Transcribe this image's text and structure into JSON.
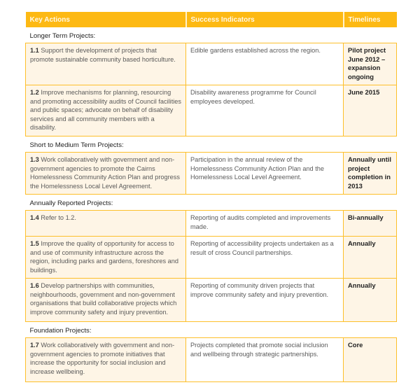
{
  "colors": {
    "header": "#fdb913",
    "cell_tint": "#fef5e6",
    "border": "#fdbf2a"
  },
  "headers": [
    "Key Actions",
    "Success Indicators",
    "Timelines"
  ],
  "sections": [
    {
      "title": "Longer Term Projects:",
      "rows": [
        {
          "num": "1.1",
          "action": "Support the development of projects that promote sustainable community based horticulture.",
          "indicator": "Edible gardens established across the region.",
          "timeline": "Pilot project June 2012 – expansion ongoing"
        },
        {
          "num": "1.2",
          "action": "Improve mechanisms for planning, resourcing and promoting accessibility audits of Council facilities and public spaces; advocate on behalf of disability services and all community members with a disability.",
          "indicator": "Disability awareness programme for Council employees developed.",
          "timeline": "June 2015"
        }
      ]
    },
    {
      "title": "Short to Medium Term Projects:",
      "rows": [
        {
          "num": "1.3",
          "action": "Work collaboratively with government and non-government agencies to promote the Cairns Homelessness Community Action Plan and progress the Homelessness Local Level Agreement.",
          "indicator": "Participation in the annual review of the Homelessness Community Action Plan and the Homelessness Local Level Agreement.",
          "timeline": "Annually until project completion in 2013"
        }
      ]
    },
    {
      "title": "Annually Reported Projects:",
      "rows": [
        {
          "num": "1.4",
          "action": "Refer to 1.2.",
          "indicator": "Reporting of audits completed and improvements made.",
          "timeline": "Bi-annually"
        },
        {
          "num": "1.5",
          "action": "Improve the quality of opportunity for access to and use of community infrastructure across the region, including parks and gardens, foreshores and buildings.",
          "indicator": "Reporting of accessibility projects undertaken as a result of cross Council partnerships.",
          "timeline": "Annually"
        },
        {
          "num": "1.6",
          "action": "Develop partnerships with communities, neighbourhoods, government and non-government organisations that build collaborative projects which improve community safety and injury prevention.",
          "indicator": "Reporting of community driven projects that improve community safety and injury prevention.",
          "timeline": "Annually"
        }
      ]
    },
    {
      "title": "Foundation Projects:",
      "rows": [
        {
          "num": "1.7",
          "action": "Work collaboratively with government and non-government agencies to promote initiatives that increase the opportunity for social inclusion and increase wellbeing.",
          "indicator": "Projects completed that promote social inclusion and wellbeing through strategic partnerships.",
          "timeline": "Core"
        }
      ]
    }
  ]
}
